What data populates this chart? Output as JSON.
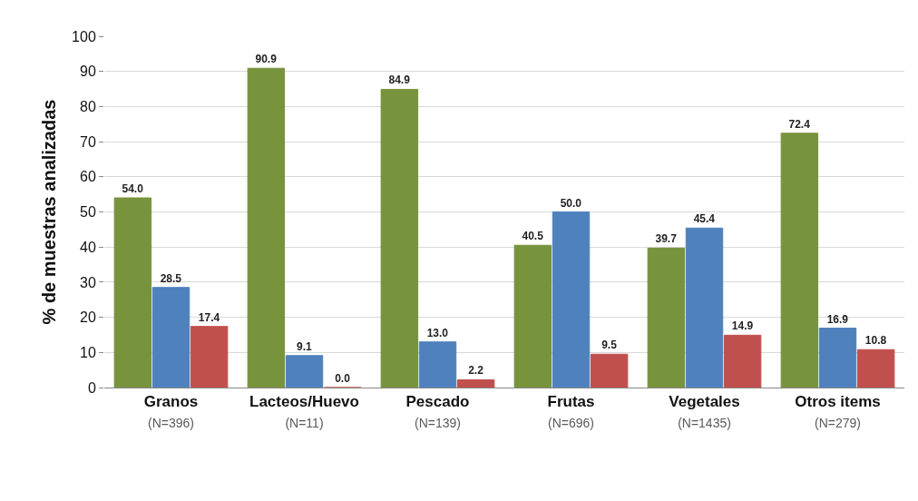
{
  "chart_data": {
    "type": "bar",
    "ylabel": "% de muestras analizadas",
    "categories": [
      "Granos\n(N=396)",
      "Lacteos/Huevo\n(N=11)",
      "Pescado\n(N=139)",
      "Frutas\n(N=696)",
      "Vegetales\n(N=1435)",
      "Otros items\n(N=279)"
    ],
    "series": [
      {
        "color": "#77933c",
        "values": [
          54.0,
          90.9,
          84.9,
          40.5,
          39.7,
          72.4
        ],
        "value_labels": [
          "54.0",
          "90.9",
          "84.9",
          "40.5",
          "39.7",
          "72.4"
        ]
      },
      {
        "color": "#4f81bd",
        "values": [
          28.5,
          9.1,
          13.0,
          50.0,
          45.4,
          16.9
        ],
        "value_labels": [
          "28.5",
          "9.1",
          "13.0",
          "50.0",
          "45.4",
          "16.9"
        ]
      },
      {
        "color": "#c0504d",
        "values": [
          17.4,
          0.0,
          2.2,
          9.5,
          14.9,
          10.8
        ],
        "value_labels": [
          "17.4",
          "0.0",
          "2.2",
          "9.5",
          "14.9",
          "10.8"
        ]
      }
    ],
    "ylim": [
      0,
      100
    ],
    "yticks": [
      0,
      10,
      20,
      30,
      40,
      50,
      60,
      70,
      80,
      90,
      100
    ],
    "grid": "y"
  }
}
